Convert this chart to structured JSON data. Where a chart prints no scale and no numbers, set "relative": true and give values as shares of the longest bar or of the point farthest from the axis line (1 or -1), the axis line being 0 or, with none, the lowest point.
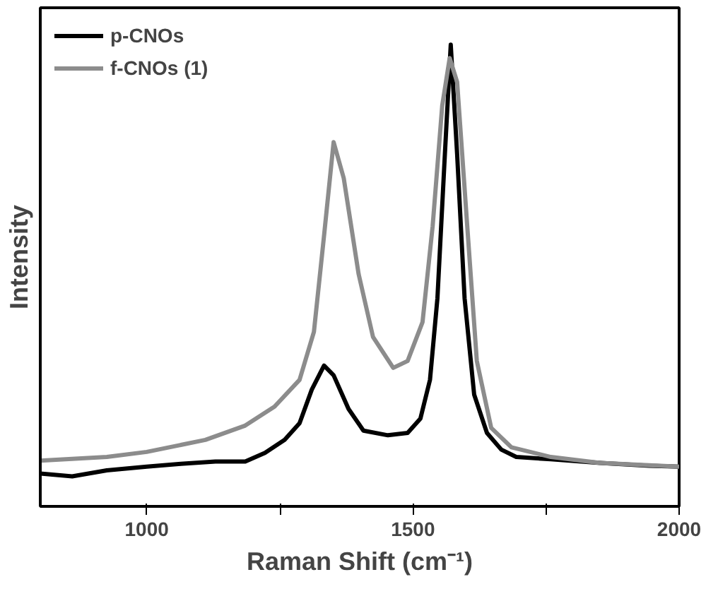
{
  "chart_data": {
    "type": "line",
    "xlabel": "Raman Shift (cm⁻¹)",
    "ylabel": "Intensity",
    "relative": true,
    "xlim": [
      800,
      2000
    ],
    "xticks": [
      1000,
      {
        "value": 1250,
        "label": null
      },
      1500,
      {
        "value": 1750,
        "label": null
      },
      2000
    ],
    "legend": "top left",
    "grid": false,
    "line_style": "solid",
    "series": [
      {
        "name": "p-CNOs",
        "color": "#000000",
        "x": [
          800,
          860,
          925,
          1000,
          1064,
          1129,
          1185,
          1222,
          1259,
          1287,
          1310,
          1333,
          1351,
          1379,
          1407,
          1453,
          1490,
          1514,
          1532,
          1546,
          1560,
          1571,
          1583,
          1597,
          1615,
          1639,
          1666,
          1694,
          1759,
          1852,
          1944,
          2000
        ],
        "values": [
          0.071,
          0.065,
          0.078,
          0.086,
          0.092,
          0.097,
          0.097,
          0.116,
          0.144,
          0.18,
          0.253,
          0.305,
          0.284,
          0.211,
          0.164,
          0.154,
          0.159,
          0.19,
          0.274,
          0.451,
          0.763,
          1.0,
          0.763,
          0.451,
          0.242,
          0.159,
          0.123,
          0.107,
          0.102,
          0.094,
          0.088,
          0.086
        ]
      },
      {
        "name": "f-CNOs (1)",
        "color": "#8c8c8c",
        "x": [
          800,
          925,
          1000,
          1110,
          1185,
          1240,
          1287,
          1314,
          1333,
          1351,
          1370,
          1398,
          1425,
          1463,
          1490,
          1518,
          1537,
          1555,
          1569,
          1583,
          1602,
          1620,
          1647,
          1685,
          1759,
          1852,
          2000
        ],
        "values": [
          0.099,
          0.107,
          0.118,
          0.144,
          0.175,
          0.216,
          0.274,
          0.378,
          0.586,
          0.789,
          0.711,
          0.503,
          0.367,
          0.3,
          0.315,
          0.399,
          0.607,
          0.868,
          0.971,
          0.919,
          0.607,
          0.315,
          0.17,
          0.128,
          0.107,
          0.094,
          0.086
        ]
      }
    ]
  }
}
